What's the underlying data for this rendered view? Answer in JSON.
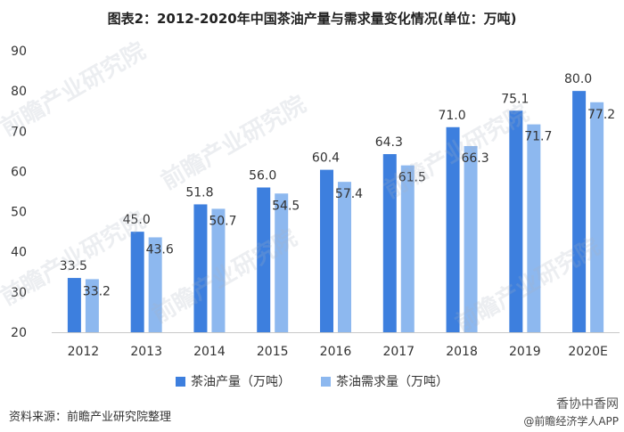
{
  "chart_data": {
    "type": "bar",
    "title": "图表2：2012-2020年中国茶油产量与需求量变化情况(单位：万吨)",
    "categories": [
      "2012",
      "2013",
      "2014",
      "2015",
      "2016",
      "2017",
      "2018",
      "2019",
      "2020E"
    ],
    "series": [
      {
        "name": "茶油产量（万吨）",
        "values": [
          33.5,
          45.0,
          51.8,
          56.0,
          60.4,
          64.3,
          71.0,
          75.1,
          80.0
        ],
        "color": "#3d7fde"
      },
      {
        "name": "茶油需求量（万吨）",
        "values": [
          33.2,
          43.6,
          50.7,
          54.5,
          57.4,
          61.5,
          66.3,
          71.7,
          77.2
        ],
        "color": "#8db8ef"
      }
    ],
    "ylim": [
      20,
      90
    ],
    "yticks": [
      20,
      30,
      40,
      50,
      60,
      70,
      80,
      90
    ],
    "grid": false,
    "legend_position": "bottom"
  },
  "source_note": "资料来源：前瞻产业研究院整理",
  "brand": {
    "name": "香协中香网",
    "sub": "@前瞻经济学人APP"
  },
  "watermark": "前瞻产业研究院"
}
